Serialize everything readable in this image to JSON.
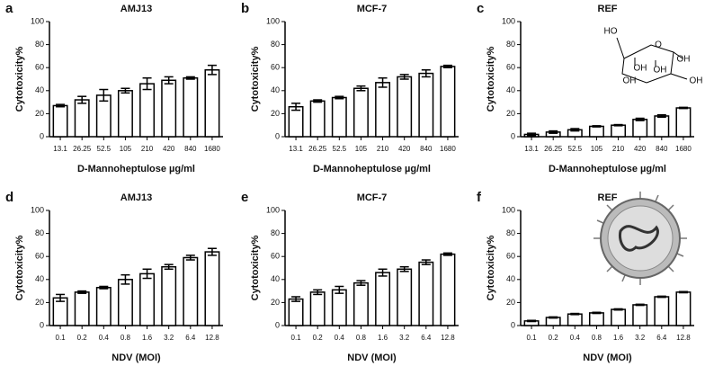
{
  "chart_data": [
    {
      "type": "bar",
      "label": "a",
      "title": "AMJ13",
      "ylabel": "Cytotoxicity%",
      "xlabel": "D-Mannoheptulose µg/ml",
      "categories": [
        "13.1",
        "26.25",
        "52.5",
        "105",
        "210",
        "420",
        "840",
        "1680"
      ],
      "values": [
        27,
        32,
        36,
        40,
        46,
        49,
        51,
        58
      ],
      "errors": [
        1,
        3,
        5,
        2,
        5,
        3,
        1,
        4
      ],
      "ylim": [
        0,
        100
      ],
      "yticks": [
        0,
        20,
        40,
        60,
        80,
        100
      ],
      "color": "#ffffff"
    },
    {
      "type": "bar",
      "label": "b",
      "title": "MCF-7",
      "ylabel": "Cytotoxicity%",
      "xlabel": "D-Mannoheptulose µg/ml",
      "categories": [
        "13.1",
        "26.25",
        "52.5",
        "105",
        "210",
        "420",
        "840",
        "1680"
      ],
      "values": [
        26,
        31,
        34,
        42,
        47,
        52,
        55,
        61
      ],
      "errors": [
        3,
        1,
        1,
        2,
        4,
        2,
        3,
        1
      ],
      "ylim": [
        0,
        100
      ],
      "yticks": [
        0,
        20,
        40,
        60,
        80,
        100
      ],
      "color": "#ffffff"
    },
    {
      "type": "bar",
      "label": "c",
      "title": "REF",
      "ylabel": "Cytotoxicity%",
      "xlabel": "D-Mannoheptulose µg/ml",
      "categories": [
        "13.1",
        "26.25",
        "52.5",
        "105",
        "210",
        "420",
        "840",
        "1680"
      ],
      "values": [
        2,
        4,
        6,
        9,
        10,
        15,
        18,
        25
      ],
      "errors": [
        1,
        1,
        1,
        0.5,
        0.5,
        1,
        1,
        0.5
      ],
      "ylim": [
        0,
        100
      ],
      "yticks": [
        0,
        20,
        40,
        60,
        80,
        100
      ],
      "color": "#ffffff",
      "annotations": [
        "HO",
        "O",
        "OH",
        "OH",
        "OH",
        "OH",
        "OH"
      ]
    },
    {
      "type": "bar",
      "label": "d",
      "title": "AMJ13",
      "ylabel": "Cytotoxicity%",
      "xlabel": "NDV (MOI)",
      "categories": [
        "0.1",
        "0.2",
        "0.4",
        "0.8",
        "1.6",
        "3.2",
        "6.4",
        "12.8"
      ],
      "values": [
        24,
        29,
        33,
        40,
        45,
        51,
        59,
        64
      ],
      "errors": [
        3,
        1,
        1,
        4,
        4,
        2,
        2,
        3
      ],
      "ylim": [
        0,
        100
      ],
      "yticks": [
        0,
        20,
        40,
        60,
        80,
        100
      ],
      "color": "#ffffff"
    },
    {
      "type": "bar",
      "label": "e",
      "title": "MCF-7",
      "ylabel": "Cytotoxicity%",
      "xlabel": "NDV (MOI)",
      "categories": [
        "0.1",
        "0.2",
        "0.4",
        "0.8",
        "1.6",
        "3.2",
        "6.4",
        "12.8"
      ],
      "values": [
        23,
        29,
        31,
        37,
        46,
        49,
        55,
        62
      ],
      "errors": [
        2,
        2,
        3,
        2,
        3,
        2,
        2,
        1
      ],
      "ylim": [
        0,
        100
      ],
      "yticks": [
        0,
        20,
        40,
        60,
        80,
        100
      ],
      "color": "#ffffff"
    },
    {
      "type": "bar",
      "label": "f",
      "title": "REF",
      "ylabel": "Cytotoxicity%",
      "xlabel": "NDV (MOI)",
      "categories": [
        "0.1",
        "0.2",
        "0.4",
        "0.8",
        "1.6",
        "3.2",
        "6.4",
        "12.8"
      ],
      "values": [
        4,
        7,
        10,
        11,
        14,
        18,
        25,
        29
      ],
      "errors": [
        0.5,
        0.5,
        0.5,
        0.5,
        0.5,
        0.5,
        0.5,
        0.5
      ],
      "ylim": [
        0,
        100
      ],
      "yticks": [
        0,
        20,
        40,
        60,
        80,
        100
      ],
      "color": "#ffffff"
    }
  ]
}
